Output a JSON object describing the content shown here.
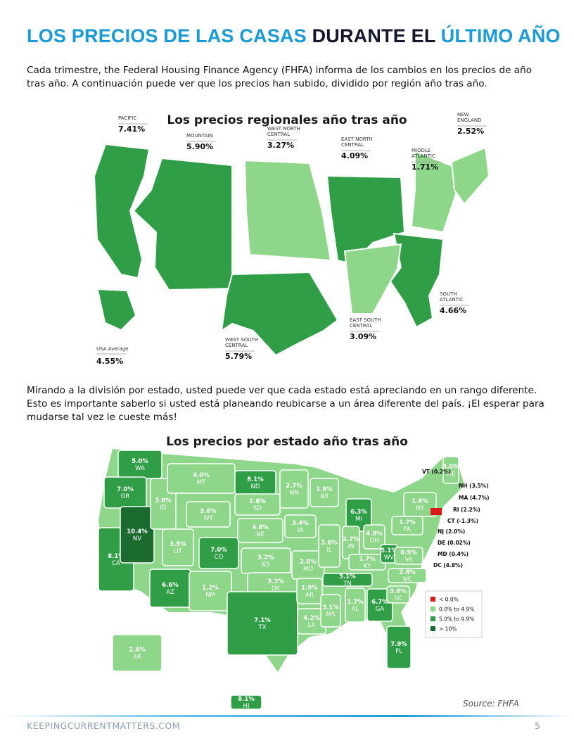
{
  "header": {
    "title_parts": [
      "LOS PRECIOS DE LAS CASAS",
      "DURANTE EL",
      "ÚLTIMO AÑO"
    ],
    "intro": "Cada trimestre, the Federal Housing Finance Agency (FHFA) informa de los cambios en los precios de año tras año. A continuación puede ver que los precios han subido, dividido por región año tras año."
  },
  "regional_map": {
    "title": "Los precios regionales año tras año",
    "regions": [
      {
        "name": "PACIFIC",
        "value": "7.41%",
        "color": "#2f9e47"
      },
      {
        "name": "MOUNTAIN",
        "value": "5.90%",
        "color": "#2f9e47"
      },
      {
        "name": "WEST NORTH CENTRAL",
        "value": "3.27%",
        "color": "#8ed68a"
      },
      {
        "name": "EAST NORTH CENTRAL",
        "value": "4.09%",
        "color": "#2f9e47"
      },
      {
        "name": "MIDDLE ATLANTIC",
        "value": "1.71%",
        "color": "#8ed68a"
      },
      {
        "name": "NEW ENGLAND",
        "value": "2.52%",
        "color": "#8ed68a"
      },
      {
        "name": "SOUTH ATLANTIC",
        "value": "4.66%",
        "color": "#2f9e47"
      },
      {
        "name": "EAST SOUTH CENTRAL",
        "value": "3.09%",
        "color": "#8ed68a"
      },
      {
        "name": "WEST SOUTH CENTRAL",
        "value": "5.79%",
        "color": "#2f9e47"
      }
    ],
    "usa_average": {
      "name": "USA Average",
      "value": "4.55%"
    }
  },
  "body": "Mirando a la división por estado, usted puede ver que cada estado está apreciando en un rango diferente. Esto es importante saberlo si usted está planeando reubicarse a un área diferente del país. ¡El esperar para mudarse tal vez le cueste más!",
  "state_map": {
    "title": "Los precios por estado año tras año",
    "states": [
      {
        "abbr": "WA",
        "value": "5.0%",
        "color": "#2f9e47"
      },
      {
        "abbr": "OR",
        "value": "7.0%",
        "color": "#2f9e47"
      },
      {
        "abbr": "CA",
        "value": "8.1%",
        "color": "#2f9e47"
      },
      {
        "abbr": "NV",
        "value": "10.4%",
        "color": "#1b6b30"
      },
      {
        "abbr": "ID",
        "value": "3.8%",
        "color": "#8ed68a"
      },
      {
        "abbr": "MT",
        "value": "4.0%",
        "color": "#8ed68a"
      },
      {
        "abbr": "WY",
        "value": "3.6%",
        "color": "#8ed68a"
      },
      {
        "abbr": "UT",
        "value": "3.5%",
        "color": "#8ed68a"
      },
      {
        "abbr": "CO",
        "value": "7.0%",
        "color": "#2f9e47"
      },
      {
        "abbr": "AZ",
        "value": "6.6%",
        "color": "#2f9e47"
      },
      {
        "abbr": "NM",
        "value": "1.2%",
        "color": "#8ed68a"
      },
      {
        "abbr": "ND",
        "value": "8.1%",
        "color": "#2f9e47"
      },
      {
        "abbr": "SD",
        "value": "2.6%",
        "color": "#8ed68a"
      },
      {
        "abbr": "NE",
        "value": "4.8%",
        "color": "#8ed68a"
      },
      {
        "abbr": "KS",
        "value": "3.2%",
        "color": "#8ed68a"
      },
      {
        "abbr": "OK",
        "value": "3.3%",
        "color": "#8ed68a"
      },
      {
        "abbr": "TX",
        "value": "7.1%",
        "color": "#2f9e47"
      },
      {
        "abbr": "MN",
        "value": "2.7%",
        "color": "#8ed68a"
      },
      {
        "abbr": "IA",
        "value": "3.4%",
        "color": "#8ed68a"
      },
      {
        "abbr": "MO",
        "value": "2.8%",
        "color": "#8ed68a"
      },
      {
        "abbr": "AR",
        "value": "1.9%",
        "color": "#8ed68a"
      },
      {
        "abbr": "LA",
        "value": "4.2%",
        "color": "#8ed68a"
      },
      {
        "abbr": "WI",
        "value": "2.8%",
        "color": "#8ed68a"
      },
      {
        "abbr": "IL",
        "value": "3.6%",
        "color": "#8ed68a"
      },
      {
        "abbr": "MS",
        "value": "3.1%",
        "color": "#8ed68a"
      },
      {
        "abbr": "MI",
        "value": "6.3%",
        "color": "#2f9e47"
      },
      {
        "abbr": "IN",
        "value": "2.7%",
        "color": "#8ed68a"
      },
      {
        "abbr": "KY",
        "value": "1.7%",
        "color": "#8ed68a"
      },
      {
        "abbr": "TN",
        "value": "5.1%",
        "color": "#2f9e47"
      },
      {
        "abbr": "AL",
        "value": "1.7%",
        "color": "#8ed68a"
      },
      {
        "abbr": "GA",
        "value": "6.7%",
        "color": "#2f9e47"
      },
      {
        "abbr": "FL",
        "value": "7.9%",
        "color": "#2f9e47"
      },
      {
        "abbr": "OH",
        "value": "4.0%",
        "color": "#8ed68a"
      },
      {
        "abbr": "WV",
        "value": "5.1%",
        "color": "#2f9e47"
      },
      {
        "abbr": "VA",
        "value": "0.9%",
        "color": "#8ed68a"
      },
      {
        "abbr": "NC",
        "value": "2.8%",
        "color": "#8ed68a"
      },
      {
        "abbr": "SC",
        "value": "3.6%",
        "color": "#8ed68a"
      },
      {
        "abbr": "PA",
        "value": "1.7%",
        "color": "#8ed68a"
      },
      {
        "abbr": "NY",
        "value": "1.6%",
        "color": "#8ed68a"
      },
      {
        "abbr": "ME",
        "value": "3.0%",
        "color": "#8ed68a"
      },
      {
        "abbr": "AK",
        "value": "2.4%",
        "color": "#8ed68a"
      },
      {
        "abbr": "HI",
        "value": "8.1%",
        "color": "#2f9e47"
      }
    ],
    "small_states": [
      "VT (0.2%)",
      "NH (3.5%)",
      "MA (4.7%)",
      "RI (2.2%)",
      "CT (-1.3%)",
      "NJ (2.0%)",
      "DE (0.02%)",
      "MD (0.4%)",
      "DC (4.8%)"
    ],
    "legend": [
      {
        "label": "< 0.0%",
        "color": "#d9191c"
      },
      {
        "label": "0.0% to 4.9%",
        "color": "#8ed68a"
      },
      {
        "label": "5.0% to 9.9%",
        "color": "#2f9e47"
      },
      {
        "label": "> 10%",
        "color": "#1b6b30"
      }
    ]
  },
  "source": "Source: FHFA",
  "footer": {
    "site": "KEEPINGCURRENTMATTERS.COM",
    "page": "5"
  }
}
